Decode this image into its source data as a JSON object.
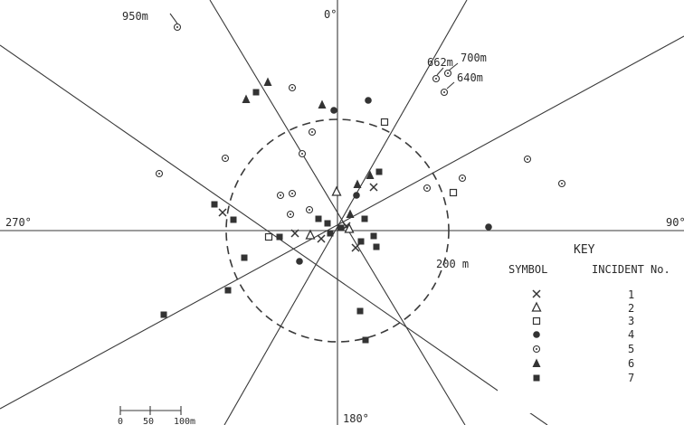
{
  "labels": {
    "north": "0°",
    "south": "180°",
    "west": "270°",
    "east": "90°",
    "circle": "200 m",
    "d950": "950m",
    "d662": "662m",
    "d700": "700m",
    "d640": "640m"
  },
  "key": {
    "title": "KEY",
    "col_symbol": "SYMBOL",
    "col_incident": "INCIDENT No.",
    "rows": [
      {
        "symbol": "X",
        "no": "1"
      },
      {
        "symbol": "Δ",
        "no": "2"
      },
      {
        "symbol": "□",
        "no": "3"
      },
      {
        "symbol": "●",
        "no": "4"
      },
      {
        "symbol": "⊙",
        "no": "5"
      },
      {
        "symbol": "▲",
        "no": "6"
      },
      {
        "symbol": "■",
        "no": "7"
      }
    ]
  },
  "scale": {
    "t0": "0",
    "t1": "50",
    "t2": "100m"
  },
  "colors": {
    "ink": "#333333",
    "background": "#ffffff"
  }
}
